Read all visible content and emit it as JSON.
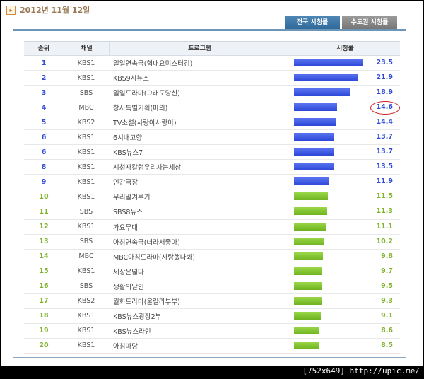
{
  "date": "2012년 11월 12일",
  "tabs": [
    "전국 시청률",
    "수도권 시청률"
  ],
  "columns": {
    "rank": "순위",
    "channel": "채널",
    "program": "프로그램",
    "rating": "시청률"
  },
  "highlight_rank": 4,
  "rows": [
    {
      "rank": "1",
      "channel": "KBS1",
      "program": "일일연속극(힘내요미스터김)",
      "rating": "23.5"
    },
    {
      "rank": "2",
      "channel": "KBS1",
      "program": "KBS9시뉴스",
      "rating": "21.9"
    },
    {
      "rank": "3",
      "channel": "SBS",
      "program": "일일드라마(그래도당신)",
      "rating": "18.9"
    },
    {
      "rank": "4",
      "channel": "MBC",
      "program": "창사특별기획(마의)",
      "rating": "14.6"
    },
    {
      "rank": "5",
      "channel": "KBS2",
      "program": "TV소설(사랑아사랑아)",
      "rating": "14.4"
    },
    {
      "rank": "6",
      "channel": "KBS1",
      "program": "6시내고향",
      "rating": "13.7"
    },
    {
      "rank": "6",
      "channel": "KBS1",
      "program": "KBS뉴스7",
      "rating": "13.7"
    },
    {
      "rank": "8",
      "channel": "KBS1",
      "program": "시청자칼럼우리사는세상",
      "rating": "13.5"
    },
    {
      "rank": "9",
      "channel": "KBS1",
      "program": "인간극장",
      "rating": "11.9"
    },
    {
      "rank": "10",
      "channel": "KBS1",
      "program": "우리말겨루기",
      "rating": "11.5"
    },
    {
      "rank": "11",
      "channel": "SBS",
      "program": "SBS8뉴스",
      "rating": "11.3"
    },
    {
      "rank": "12",
      "channel": "KBS1",
      "program": "가요무대",
      "rating": "11.1"
    },
    {
      "rank": "13",
      "channel": "SBS",
      "program": "아침연속극(너라서좋아)",
      "rating": "10.2"
    },
    {
      "rank": "14",
      "channel": "MBC",
      "program": "MBC아침드라마(사랑했나봐)",
      "rating": "9.8"
    },
    {
      "rank": "15",
      "channel": "KBS1",
      "program": "세상은넓다",
      "rating": "9.7"
    },
    {
      "rank": "16",
      "channel": "SBS",
      "program": "생활의달인",
      "rating": "9.5"
    },
    {
      "rank": "17",
      "channel": "KBS2",
      "program": "월화드라마(울랄라부부)",
      "rating": "9.3"
    },
    {
      "rank": "18",
      "channel": "KBS1",
      "program": "KBS뉴스광장2부",
      "rating": "9.1"
    },
    {
      "rank": "19",
      "channel": "KBS1",
      "program": "KBS뉴스라인",
      "rating": "8.6"
    },
    {
      "rank": "20",
      "channel": "KBS1",
      "program": "아침마당",
      "rating": "8.5"
    }
  ],
  "footer_text": "[752x649] http://upic.me/",
  "colors": {
    "top10": "#2f4bd6",
    "rest": "#7fb22a",
    "highlight": "#d02020"
  }
}
